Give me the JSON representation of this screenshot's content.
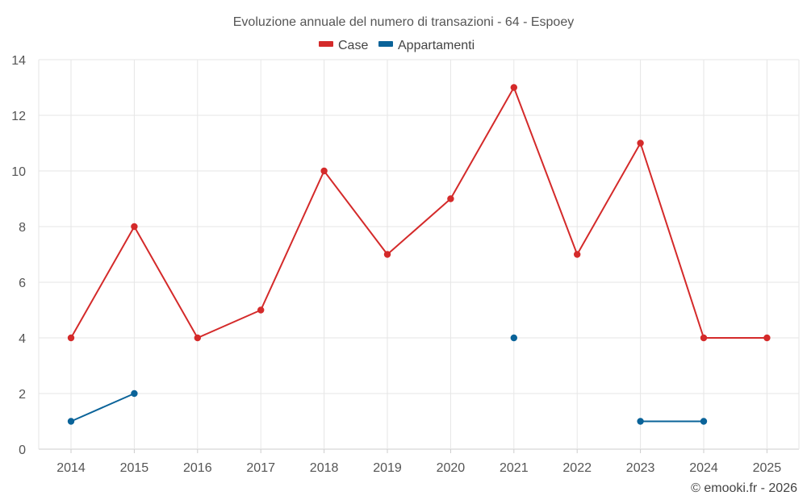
{
  "chart_data": {
    "type": "line",
    "title": "Evoluzione annuale del numero di transazioni - 64 - Espoey",
    "categories": [
      "2014",
      "2015",
      "2016",
      "2017",
      "2018",
      "2019",
      "2020",
      "2021",
      "2022",
      "2023",
      "2024",
      "2025"
    ],
    "y_ticks": [
      "0",
      "2",
      "4",
      "6",
      "8",
      "10",
      "12",
      "14"
    ],
    "ylim": [
      0,
      14
    ],
    "grid": true,
    "legend_position": "top-center",
    "series": [
      {
        "name": "Case",
        "color": "#d42a2a",
        "values": [
          4,
          8,
          4,
          5,
          10,
          7,
          9,
          13,
          7,
          11,
          4,
          4
        ]
      },
      {
        "name": "Appartamenti",
        "color": "#0a6399",
        "values": [
          1,
          2,
          null,
          null,
          null,
          null,
          null,
          4,
          null,
          1,
          1,
          null
        ]
      }
    ]
  },
  "credit": "© emooki.fr - 2026"
}
